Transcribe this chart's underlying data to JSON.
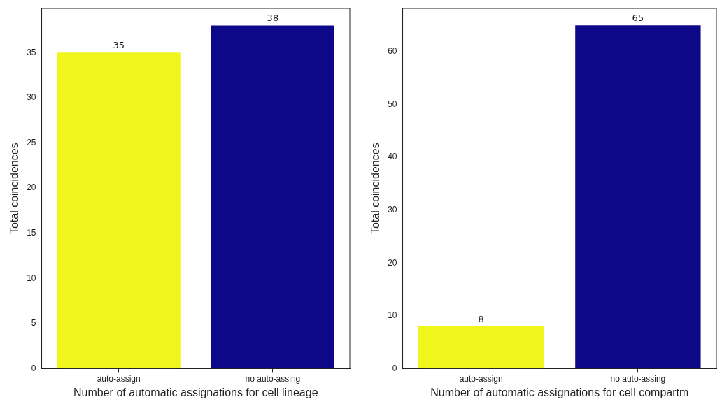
{
  "chart_data": [
    {
      "type": "bar",
      "categories": [
        "auto-assign",
        "no auto-assing"
      ],
      "values": [
        35,
        38
      ],
      "colors": [
        "#f0f51c",
        "#0d0887"
      ],
      "xlabel": "Number of automatic assignations for cell lineage",
      "ylabel": "Total coincidences",
      "ylim": [
        0,
        39.9
      ],
      "yticks": [
        0,
        5,
        10,
        15,
        20,
        25,
        30,
        35
      ],
      "data_labels": true
    },
    {
      "type": "bar",
      "categories": [
        "auto-assign",
        "no auto-assing"
      ],
      "values": [
        8,
        65
      ],
      "colors": [
        "#f0f51c",
        "#0d0887"
      ],
      "xlabel": "Number of automatic assignations for cell compartm",
      "ylabel": "Total coincidences",
      "ylim": [
        0,
        68.2
      ],
      "yticks": [
        0,
        10,
        20,
        30,
        40,
        50,
        60
      ],
      "data_labels": true
    }
  ]
}
